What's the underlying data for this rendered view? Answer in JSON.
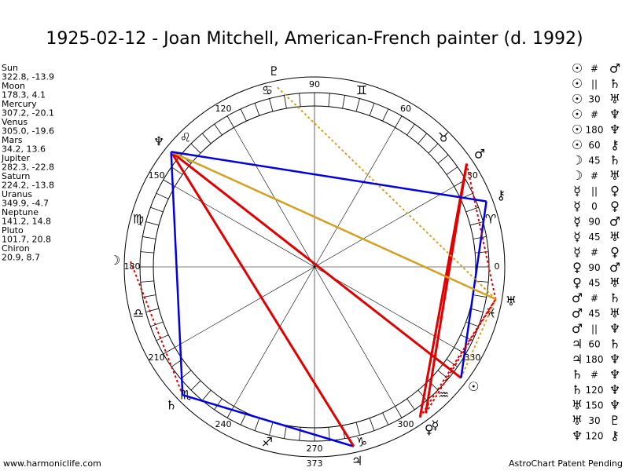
{
  "title": "1925-02-12 - Joan Mitchell, American-French painter (d. 1992)",
  "planets": [
    {
      "name": "Sun",
      "coords": "322.8, -13.9",
      "glyph": "☉"
    },
    {
      "name": "Moon",
      "coords": "178.3, 4.1",
      "glyph": "☽"
    },
    {
      "name": "Mercury",
      "coords": "307.2, -20.1",
      "glyph": "☿"
    },
    {
      "name": "Venus",
      "coords": "305.0, -19.6",
      "glyph": "♀"
    },
    {
      "name": "Mars",
      "coords": "34.2, 13.6",
      "glyph": "♂"
    },
    {
      "name": "Jupiter",
      "coords": "282.3, -22.8",
      "glyph": "♃"
    },
    {
      "name": "Saturn",
      "coords": "224.2, -13.8",
      "glyph": "♄"
    },
    {
      "name": "Uranus",
      "coords": "349.9, -4.7",
      "glyph": "♅"
    },
    {
      "name": "Neptune",
      "coords": "141.2, 14.8",
      "glyph": "♆"
    },
    {
      "name": "Pluto",
      "coords": "101.7, 20.8",
      "glyph": "♇"
    },
    {
      "name": "Chiron",
      "coords": "20.9, 8.7",
      "glyph": "⚷"
    }
  ],
  "signs": [
    "♈",
    "♉",
    "♊",
    "♋",
    "♌",
    "♍",
    "♎",
    "♏",
    "♐",
    "♑",
    "♒",
    "♓"
  ],
  "degree_labels": [
    0,
    30,
    60,
    90,
    120,
    150,
    180,
    210,
    240,
    270,
    300,
    330
  ],
  "bottom_number": "373",
  "aspects": [
    {
      "p1": "☉",
      "aspect": "#",
      "p2": "♂"
    },
    {
      "p1": "☉",
      "aspect": "||",
      "p2": "♄"
    },
    {
      "p1": "☉",
      "aspect": "30",
      "p2": "♅"
    },
    {
      "p1": "☉",
      "aspect": "#",
      "p2": "♆"
    },
    {
      "p1": "☉",
      "aspect": "180",
      "p2": "♆"
    },
    {
      "p1": "☉",
      "aspect": "60",
      "p2": "⚷"
    },
    {
      "p1": "☽",
      "aspect": "45",
      "p2": "♄"
    },
    {
      "p1": "☽",
      "aspect": "#",
      "p2": "♅"
    },
    {
      "p1": "☿",
      "aspect": "||",
      "p2": "♀"
    },
    {
      "p1": "☿",
      "aspect": "0",
      "p2": "♀"
    },
    {
      "p1": "☿",
      "aspect": "90",
      "p2": "♂"
    },
    {
      "p1": "☿",
      "aspect": "45",
      "p2": "♅"
    },
    {
      "p1": "☿",
      "aspect": "#",
      "p2": "♀"
    },
    {
      "p1": "♀",
      "aspect": "90",
      "p2": "♂"
    },
    {
      "p1": "♀",
      "aspect": "45",
      "p2": "♅"
    },
    {
      "p1": "♂",
      "aspect": "#",
      "p2": "♄"
    },
    {
      "p1": "♂",
      "aspect": "45",
      "p2": "♅"
    },
    {
      "p1": "♂",
      "aspect": "||",
      "p2": "♆"
    },
    {
      "p1": "♃",
      "aspect": "60",
      "p2": "♄"
    },
    {
      "p1": "♃",
      "aspect": "180",
      "p2": "♆"
    },
    {
      "p1": "♄",
      "aspect": "#",
      "p2": "♆"
    },
    {
      "p1": "♄",
      "aspect": "120",
      "p2": "♆"
    },
    {
      "p1": "♅",
      "aspect": "150",
      "p2": "♆"
    },
    {
      "p1": "♅",
      "aspect": "30",
      "p2": "♇"
    },
    {
      "p1": "♆",
      "aspect": "120",
      "p2": "⚷"
    }
  ],
  "footer": {
    "left": "www.harmoniclife.com",
    "right": "AstroChart Patent Pending"
  }
}
